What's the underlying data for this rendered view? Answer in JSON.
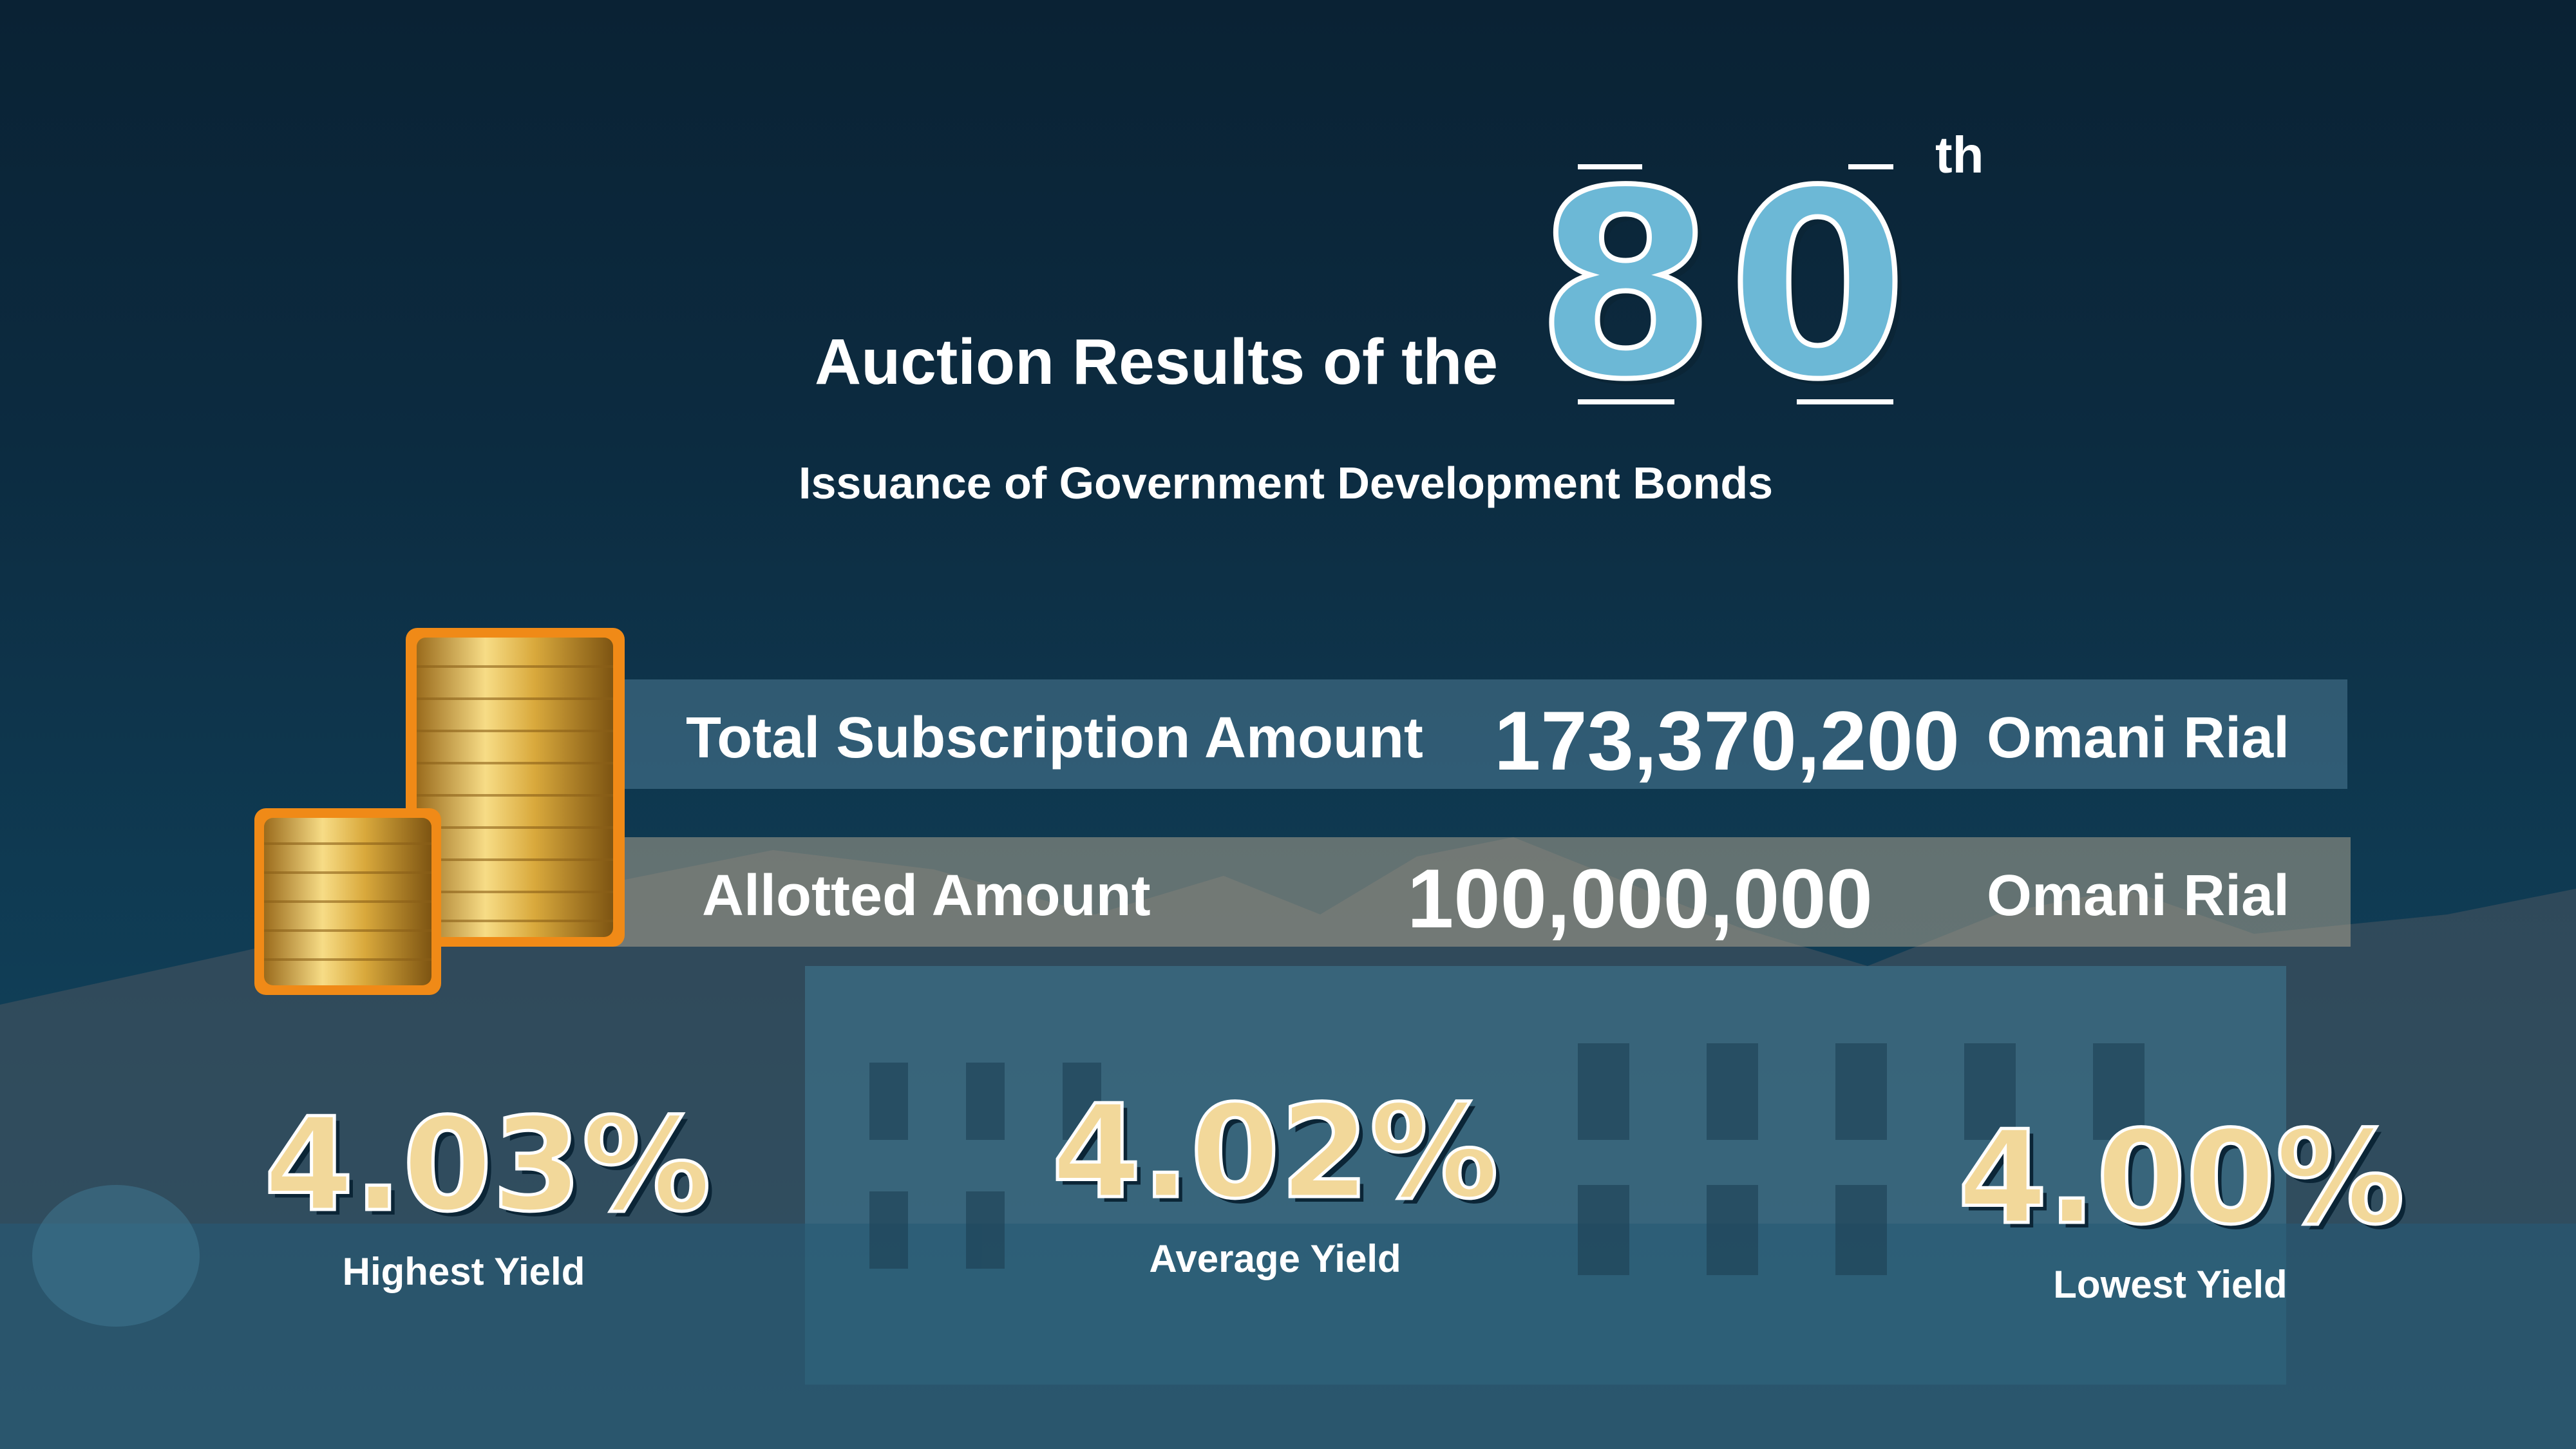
{
  "header": {
    "title_prefix": "Auction Results of the",
    "issue_number": "80",
    "ordinal_suffix": "th",
    "subtitle": "Issuance of Government Development Bonds"
  },
  "amounts": [
    {
      "label": "Total Subscription Amount",
      "value": "173,370,200",
      "currency": "Omani Rial"
    },
    {
      "label": "Allotted Amount",
      "value": "100,000,000",
      "currency": "Omani Rial"
    }
  ],
  "yields": [
    {
      "value": "4.03%",
      "label": "Highest Yield"
    },
    {
      "value": "4.02%",
      "label": "Average Yield"
    },
    {
      "value": "4.00%",
      "label": "Lowest Yield"
    }
  ],
  "colors": {
    "background": "#0c2b40",
    "accent_blue": "#6cb8d6",
    "accent_gold": "#f2d89a",
    "coin_gold": "#d9a93c"
  },
  "icons": {
    "coins": "gold-coin-stacks-icon"
  }
}
